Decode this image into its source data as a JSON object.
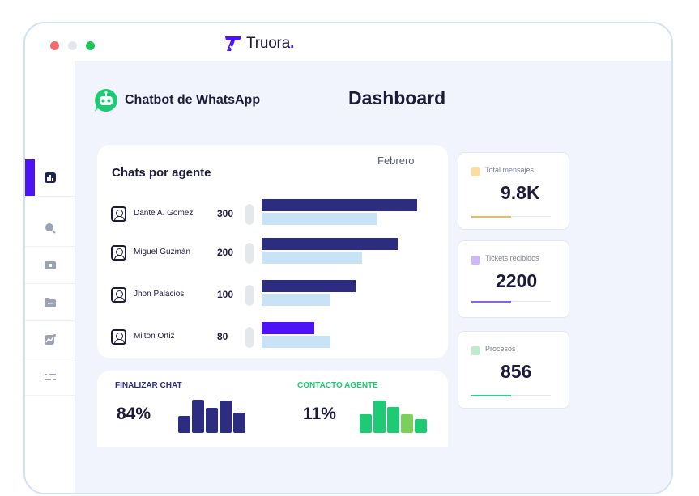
{
  "brand": {
    "name": "Truora",
    "dot": "."
  },
  "header": {
    "app_title": "Chatbot de WhatsApp",
    "page_title": "Dashboard"
  },
  "chats_card": {
    "title": "Chats por agente",
    "month": "Febrero",
    "agents": [
      {
        "name": "Dante A. Gomez",
        "value": "300",
        "dark_fill": 0.88,
        "light_fill": 0.65,
        "dark_color": "#2c2c80"
      },
      {
        "name": "Miguel Guzmán",
        "value": "200",
        "dark_fill": 0.77,
        "light_fill": 0.57,
        "dark_color": "#2c2c80"
      },
      {
        "name": "Jhon Palacios",
        "value": "100",
        "dark_fill": 0.53,
        "light_fill": 0.39,
        "dark_color": "#2c2c80"
      },
      {
        "name": "Milton Ortiz",
        "value": "80",
        "dark_fill": 0.3,
        "light_fill": 0.39,
        "dark_color": "#4d12f5"
      }
    ]
  },
  "kpis": {
    "finalizar": {
      "label": "FINALIZAR CHAT",
      "value": "84%",
      "color": "#2c2c80",
      "bars": [
        0.5,
        0.97,
        0.73,
        0.95,
        0.6
      ]
    },
    "contacto": {
      "label": "CONTACTO AGENTE",
      "value": "11%",
      "colors": [
        "#1ecb75",
        "#1ecb75",
        "#1ecb75",
        "#7ccf58",
        "#1ecb75"
      ],
      "bars": [
        0.55,
        0.95,
        0.77,
        0.55,
        0.4
      ]
    }
  },
  "stats": [
    {
      "label": "Total mensajes",
      "value": "9.8K",
      "badge_color": "#fddca0",
      "line_color": "#f7b955",
      "progress": 0.5
    },
    {
      "label": "Tickets recibidos",
      "value": "2200",
      "badge_color": "#cdb9f7",
      "line_color": "#8a63e8",
      "progress": 0.5
    },
    {
      "label": "Procesos",
      "value": "856",
      "badge_color": "#bfeccf",
      "line_color": "#35c98a",
      "progress": 0.5
    }
  ],
  "sidebar": {
    "items": [
      {
        "icon": "chart-icon"
      },
      {
        "icon": "search-icon"
      },
      {
        "icon": "ticket-icon"
      },
      {
        "icon": "folder-icon"
      },
      {
        "icon": "trend-icon"
      },
      {
        "icon": "settings-icon"
      }
    ],
    "expand_icon": "chevron-right-icon",
    "expand_glyph": "›"
  }
}
